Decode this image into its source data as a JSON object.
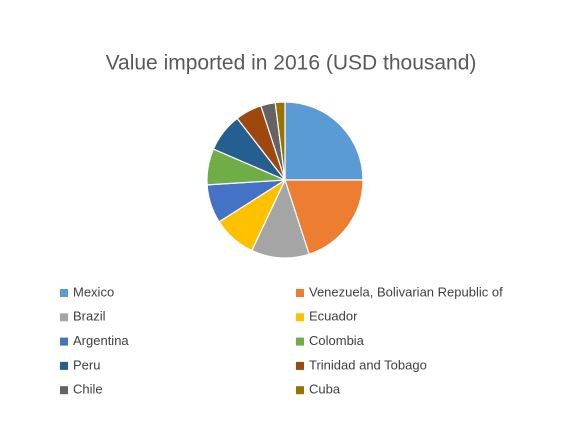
{
  "chart_data": {
    "type": "pie",
    "title": "Value imported in 2016 (USD thousand)",
    "categories": [
      "Mexico",
      "Venezuela, Bolivarian Republic of",
      "Brazil",
      "Ecuador",
      "Argentina",
      "Colombia",
      "Peru",
      "Trinidad and Tobago",
      "Chile",
      "Cuba"
    ],
    "values": [
      25,
      20,
      12,
      9,
      8,
      7.5,
      8,
      5.5,
      3,
      2
    ],
    "colors": [
      "#5b9bd5",
      "#ed7d31",
      "#a5a5a5",
      "#ffc000",
      "#4472c4",
      "#70ad47",
      "#255e91",
      "#9e480e",
      "#636363",
      "#997300"
    ],
    "legend": "bottom"
  }
}
